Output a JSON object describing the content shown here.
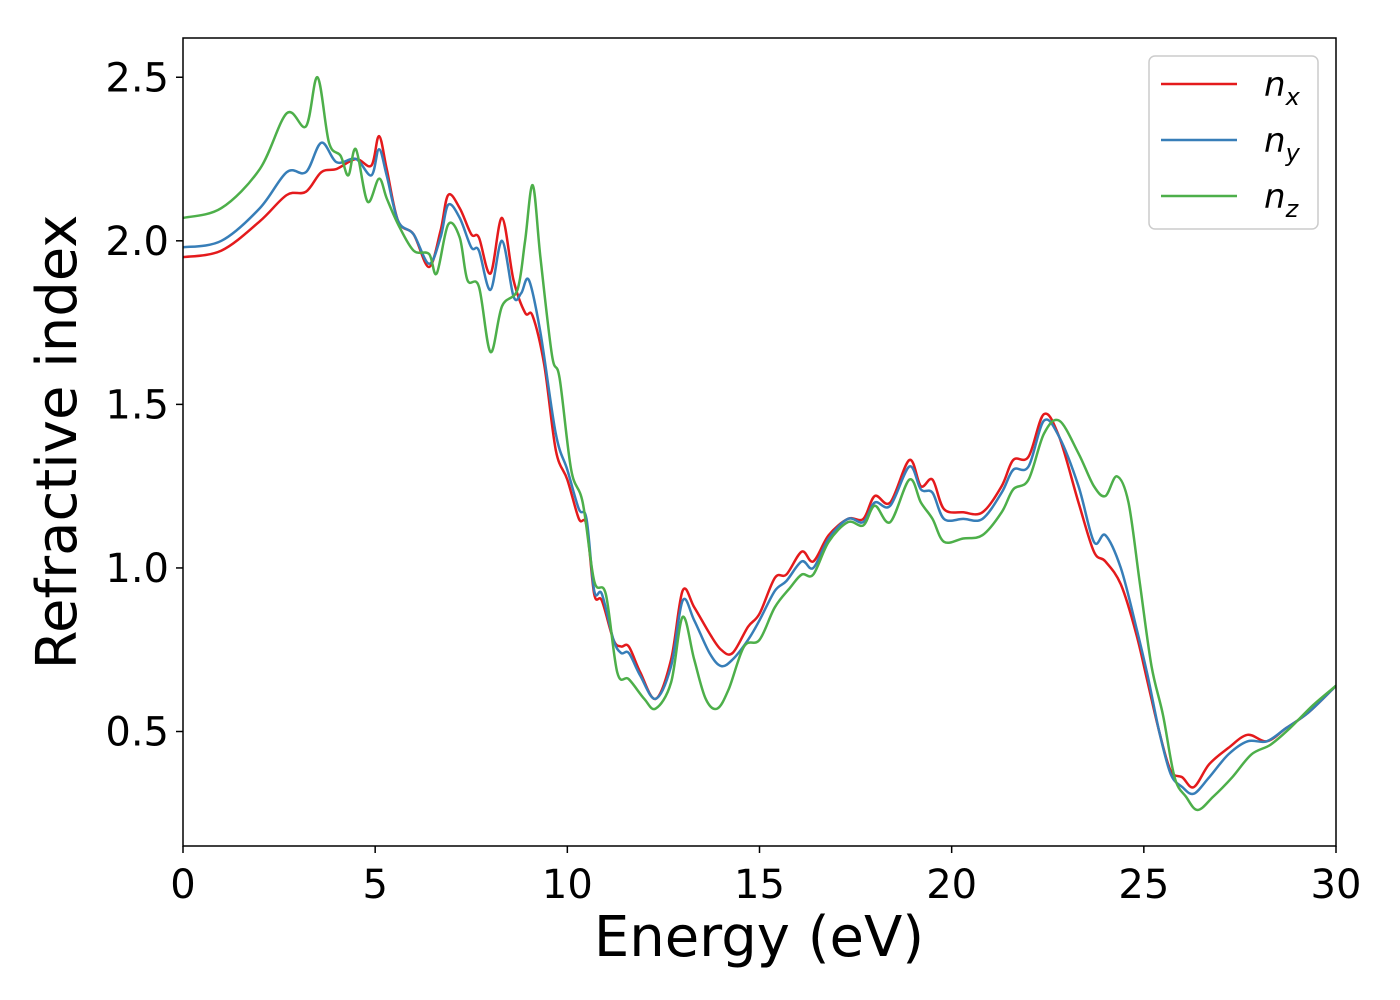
{
  "chart_data": {
    "type": "line",
    "xlabel": "Energy (eV)",
    "ylabel": "Refractive index",
    "xlim": [
      0,
      30
    ],
    "ylim": [
      0.15,
      2.62
    ],
    "xticks": [
      0,
      5,
      10,
      15,
      20,
      25,
      30
    ],
    "xtick_labels": [
      "0",
      "5",
      "10",
      "15",
      "20",
      "25",
      "30"
    ],
    "yticks": [
      0.5,
      1.0,
      1.5,
      2.0,
      2.5
    ],
    "ytick_labels": [
      "0.5",
      "1.0",
      "1.5",
      "2.0",
      "2.5"
    ],
    "grid": false,
    "legend_position": "top-right",
    "series": [
      {
        "name": "n_x",
        "label_base": "n",
        "label_sub": "x",
        "color": "#e41a1c",
        "points": [
          [
            0,
            1.95
          ],
          [
            1,
            1.97
          ],
          [
            2,
            2.06
          ],
          [
            2.7,
            2.14
          ],
          [
            3.2,
            2.15
          ],
          [
            3.6,
            2.21
          ],
          [
            4.0,
            2.22
          ],
          [
            4.5,
            2.25
          ],
          [
            4.9,
            2.23
          ],
          [
            5.1,
            2.32
          ],
          [
            5.3,
            2.22
          ],
          [
            5.6,
            2.06
          ],
          [
            6.0,
            2.02
          ],
          [
            6.4,
            1.92
          ],
          [
            6.7,
            2.03
          ],
          [
            6.9,
            2.14
          ],
          [
            7.2,
            2.1
          ],
          [
            7.5,
            2.02
          ],
          [
            7.7,
            2.01
          ],
          [
            8.0,
            1.9
          ],
          [
            8.3,
            2.07
          ],
          [
            8.6,
            1.88
          ],
          [
            8.9,
            1.78
          ],
          [
            9.1,
            1.77
          ],
          [
            9.4,
            1.62
          ],
          [
            9.7,
            1.36
          ],
          [
            10.0,
            1.27
          ],
          [
            10.3,
            1.15
          ],
          [
            10.5,
            1.13
          ],
          [
            10.7,
            0.92
          ],
          [
            10.9,
            0.9
          ],
          [
            11.2,
            0.78
          ],
          [
            11.4,
            0.76
          ],
          [
            11.6,
            0.76
          ],
          [
            11.9,
            0.68
          ],
          [
            12.3,
            0.6
          ],
          [
            12.7,
            0.72
          ],
          [
            13.0,
            0.93
          ],
          [
            13.3,
            0.88
          ],
          [
            13.7,
            0.8
          ],
          [
            14.0,
            0.75
          ],
          [
            14.3,
            0.74
          ],
          [
            14.7,
            0.82
          ],
          [
            15.0,
            0.86
          ],
          [
            15.4,
            0.97
          ],
          [
            15.7,
            0.98
          ],
          [
            16.1,
            1.05
          ],
          [
            16.4,
            1.02
          ],
          [
            16.8,
            1.1
          ],
          [
            17.3,
            1.15
          ],
          [
            17.7,
            1.15
          ],
          [
            18.0,
            1.22
          ],
          [
            18.4,
            1.2
          ],
          [
            18.9,
            1.33
          ],
          [
            19.2,
            1.25
          ],
          [
            19.5,
            1.27
          ],
          [
            19.8,
            1.18
          ],
          [
            20.3,
            1.17
          ],
          [
            20.8,
            1.17
          ],
          [
            21.3,
            1.25
          ],
          [
            21.6,
            1.33
          ],
          [
            22.0,
            1.34
          ],
          [
            22.4,
            1.47
          ],
          [
            22.8,
            1.4
          ],
          [
            23.3,
            1.2
          ],
          [
            23.7,
            1.05
          ],
          [
            24.0,
            1.02
          ],
          [
            24.4,
            0.95
          ],
          [
            24.8,
            0.8
          ],
          [
            25.1,
            0.65
          ],
          [
            25.4,
            0.5
          ],
          [
            25.7,
            0.38
          ],
          [
            26.0,
            0.36
          ],
          [
            26.3,
            0.33
          ],
          [
            26.7,
            0.4
          ],
          [
            27.2,
            0.45
          ],
          [
            27.7,
            0.49
          ],
          [
            28.2,
            0.47
          ],
          [
            28.7,
            0.51
          ],
          [
            29.3,
            0.56
          ],
          [
            30,
            0.64
          ]
        ]
      },
      {
        "name": "n_y",
        "label_base": "n",
        "label_sub": "y",
        "color": "#377eb8",
        "points": [
          [
            0,
            1.98
          ],
          [
            1,
            2.0
          ],
          [
            2,
            2.1
          ],
          [
            2.7,
            2.21
          ],
          [
            3.2,
            2.21
          ],
          [
            3.6,
            2.3
          ],
          [
            4.0,
            2.24
          ],
          [
            4.5,
            2.25
          ],
          [
            4.9,
            2.2
          ],
          [
            5.1,
            2.28
          ],
          [
            5.3,
            2.2
          ],
          [
            5.6,
            2.06
          ],
          [
            6.0,
            2.02
          ],
          [
            6.4,
            1.93
          ],
          [
            6.7,
            2.01
          ],
          [
            6.9,
            2.11
          ],
          [
            7.2,
            2.07
          ],
          [
            7.5,
            1.98
          ],
          [
            7.7,
            1.97
          ],
          [
            8.0,
            1.85
          ],
          [
            8.3,
            2.0
          ],
          [
            8.6,
            1.83
          ],
          [
            8.8,
            1.84
          ],
          [
            9.0,
            1.88
          ],
          [
            9.3,
            1.72
          ],
          [
            9.7,
            1.41
          ],
          [
            10.0,
            1.3
          ],
          [
            10.3,
            1.18
          ],
          [
            10.5,
            1.15
          ],
          [
            10.7,
            0.93
          ],
          [
            10.9,
            0.92
          ],
          [
            11.2,
            0.78
          ],
          [
            11.4,
            0.74
          ],
          [
            11.6,
            0.74
          ],
          [
            11.9,
            0.67
          ],
          [
            12.3,
            0.6
          ],
          [
            12.7,
            0.7
          ],
          [
            13.0,
            0.9
          ],
          [
            13.3,
            0.84
          ],
          [
            13.7,
            0.74
          ],
          [
            14.0,
            0.7
          ],
          [
            14.3,
            0.72
          ],
          [
            14.7,
            0.78
          ],
          [
            15.0,
            0.84
          ],
          [
            15.4,
            0.93
          ],
          [
            15.7,
            0.96
          ],
          [
            16.1,
            1.02
          ],
          [
            16.4,
            1.0
          ],
          [
            16.8,
            1.09
          ],
          [
            17.3,
            1.15
          ],
          [
            17.7,
            1.14
          ],
          [
            18.0,
            1.2
          ],
          [
            18.4,
            1.19
          ],
          [
            18.9,
            1.31
          ],
          [
            19.2,
            1.24
          ],
          [
            19.5,
            1.23
          ],
          [
            19.8,
            1.15
          ],
          [
            20.3,
            1.15
          ],
          [
            20.8,
            1.15
          ],
          [
            21.3,
            1.23
          ],
          [
            21.6,
            1.3
          ],
          [
            22.0,
            1.31
          ],
          [
            22.4,
            1.45
          ],
          [
            22.8,
            1.4
          ],
          [
            23.3,
            1.25
          ],
          [
            23.7,
            1.08
          ],
          [
            24.0,
            1.1
          ],
          [
            24.4,
            1.0
          ],
          [
            24.8,
            0.82
          ],
          [
            25.1,
            0.67
          ],
          [
            25.4,
            0.5
          ],
          [
            25.7,
            0.37
          ],
          [
            26.0,
            0.33
          ],
          [
            26.3,
            0.31
          ],
          [
            26.7,
            0.36
          ],
          [
            27.2,
            0.43
          ],
          [
            27.7,
            0.47
          ],
          [
            28.2,
            0.47
          ],
          [
            28.7,
            0.51
          ],
          [
            29.3,
            0.56
          ],
          [
            30,
            0.64
          ]
        ]
      },
      {
        "name": "n_z",
        "label_base": "n",
        "label_sub": "z",
        "color": "#4daf4a",
        "points": [
          [
            0,
            2.07
          ],
          [
            1,
            2.1
          ],
          [
            2,
            2.22
          ],
          [
            2.7,
            2.39
          ],
          [
            3.2,
            2.35
          ],
          [
            3.5,
            2.5
          ],
          [
            3.8,
            2.3
          ],
          [
            4.1,
            2.26
          ],
          [
            4.3,
            2.2
          ],
          [
            4.5,
            2.28
          ],
          [
            4.8,
            2.12
          ],
          [
            5.1,
            2.19
          ],
          [
            5.3,
            2.13
          ],
          [
            5.6,
            2.05
          ],
          [
            6.0,
            1.97
          ],
          [
            6.4,
            1.96
          ],
          [
            6.6,
            1.9
          ],
          [
            6.9,
            2.05
          ],
          [
            7.2,
            2.01
          ],
          [
            7.4,
            1.88
          ],
          [
            7.7,
            1.86
          ],
          [
            8.0,
            1.66
          ],
          [
            8.3,
            1.8
          ],
          [
            8.7,
            1.85
          ],
          [
            8.9,
            2.0
          ],
          [
            9.1,
            2.17
          ],
          [
            9.3,
            1.95
          ],
          [
            9.6,
            1.65
          ],
          [
            9.8,
            1.58
          ],
          [
            10.1,
            1.3
          ],
          [
            10.4,
            1.2
          ],
          [
            10.7,
            0.96
          ],
          [
            11.0,
            0.92
          ],
          [
            11.3,
            0.68
          ],
          [
            11.6,
            0.66
          ],
          [
            12.0,
            0.6
          ],
          [
            12.3,
            0.57
          ],
          [
            12.7,
            0.65
          ],
          [
            13.0,
            0.85
          ],
          [
            13.3,
            0.72
          ],
          [
            13.6,
            0.6
          ],
          [
            13.9,
            0.57
          ],
          [
            14.2,
            0.63
          ],
          [
            14.6,
            0.76
          ],
          [
            15.0,
            0.78
          ],
          [
            15.4,
            0.88
          ],
          [
            15.8,
            0.94
          ],
          [
            16.1,
            0.98
          ],
          [
            16.4,
            0.98
          ],
          [
            16.8,
            1.08
          ],
          [
            17.3,
            1.14
          ],
          [
            17.7,
            1.13
          ],
          [
            18.0,
            1.19
          ],
          [
            18.4,
            1.14
          ],
          [
            18.9,
            1.27
          ],
          [
            19.2,
            1.2
          ],
          [
            19.5,
            1.15
          ],
          [
            19.8,
            1.08
          ],
          [
            20.3,
            1.09
          ],
          [
            20.8,
            1.1
          ],
          [
            21.3,
            1.17
          ],
          [
            21.6,
            1.24
          ],
          [
            22.0,
            1.27
          ],
          [
            22.4,
            1.41
          ],
          [
            22.8,
            1.45
          ],
          [
            23.3,
            1.35
          ],
          [
            23.7,
            1.25
          ],
          [
            24.0,
            1.22
          ],
          [
            24.3,
            1.28
          ],
          [
            24.6,
            1.2
          ],
          [
            24.9,
            0.95
          ],
          [
            25.2,
            0.7
          ],
          [
            25.5,
            0.55
          ],
          [
            25.8,
            0.36
          ],
          [
            26.1,
            0.3
          ],
          [
            26.4,
            0.26
          ],
          [
            26.8,
            0.3
          ],
          [
            27.3,
            0.36
          ],
          [
            27.8,
            0.43
          ],
          [
            28.3,
            0.46
          ],
          [
            28.8,
            0.51
          ],
          [
            29.4,
            0.58
          ],
          [
            30,
            0.64
          ]
        ]
      }
    ]
  }
}
